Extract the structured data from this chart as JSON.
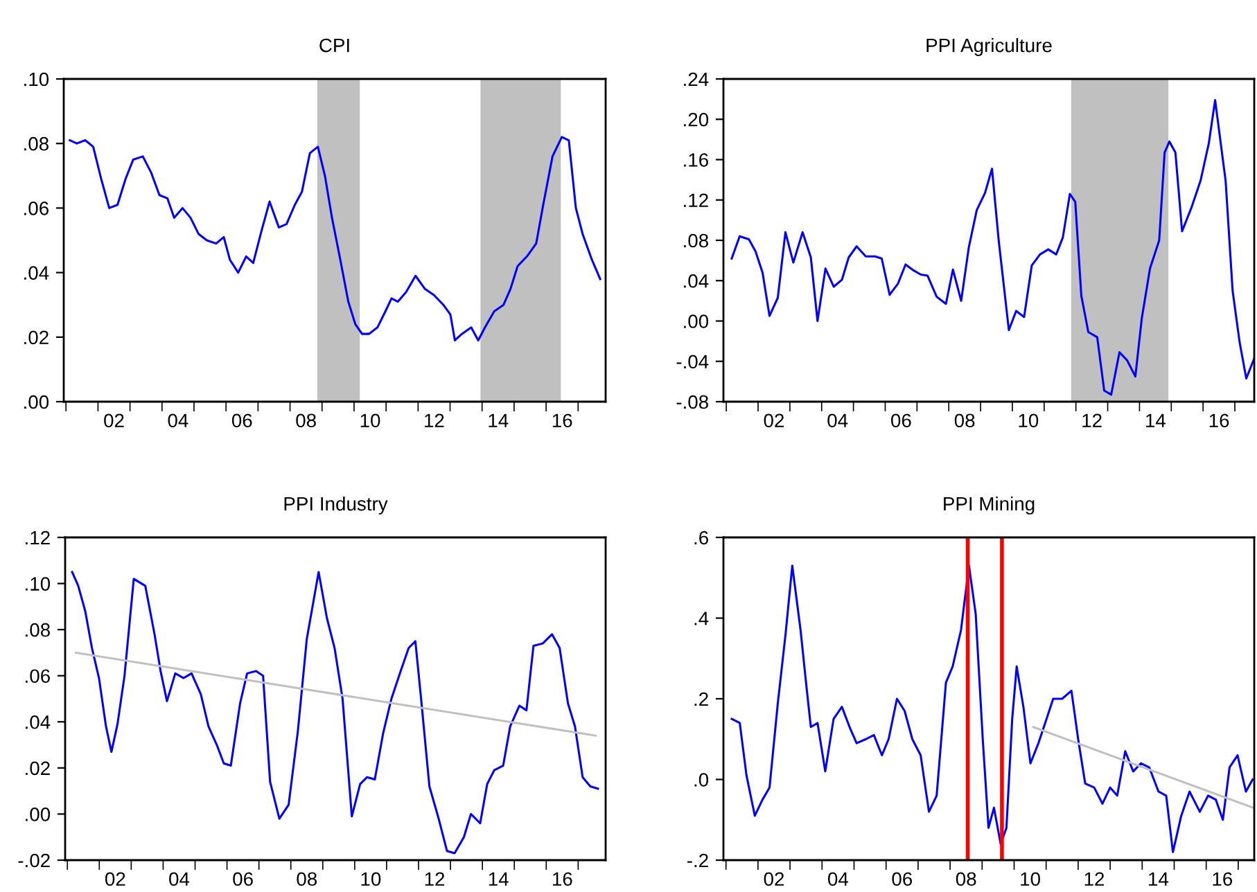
{
  "chart_data": [
    {
      "type": "line",
      "title": "CPI",
      "xlim": [
        0.43,
        17.36
      ],
      "ylim": [
        0,
        0.1
      ],
      "yticks": [
        {
          "value": 0,
          "label": ".00"
        },
        {
          "value": 0.02,
          "label": ".02"
        },
        {
          "value": 0.04,
          "label": ".04"
        },
        {
          "value": 0.06,
          "label": ".06"
        },
        {
          "value": 0.08,
          "label": ".08"
        },
        {
          "value": 0.1,
          "label": ".10"
        }
      ],
      "xticks": [
        {
          "value": 0.5,
          "label": null
        },
        {
          "value": 1.5,
          "label": null
        },
        {
          "value": 2.5,
          "label": null
        },
        {
          "value": 3.5,
          "label": null
        },
        {
          "value": 4.5,
          "label": null
        },
        {
          "value": 5.5,
          "label": null
        },
        {
          "value": 6.5,
          "label": null
        },
        {
          "value": 7.5,
          "label": null
        },
        {
          "value": 8.5,
          "label": null
        },
        {
          "value": 9.5,
          "label": null
        },
        {
          "value": 10.5,
          "label": null
        },
        {
          "value": 11.5,
          "label": null
        },
        {
          "value": 12.5,
          "label": null
        },
        {
          "value": 13.5,
          "label": null
        },
        {
          "value": 14.5,
          "label": null
        },
        {
          "value": 15.5,
          "label": null
        },
        {
          "value": 16.5,
          "label": null
        },
        {
          "value": 2,
          "label": "02"
        },
        {
          "value": 4,
          "label": "04"
        },
        {
          "value": 6,
          "label": "06"
        },
        {
          "value": 8,
          "label": "08"
        },
        {
          "value": 10,
          "label": "10"
        },
        {
          "value": 12,
          "label": "12"
        },
        {
          "value": 14,
          "label": "14"
        },
        {
          "value": 16,
          "label": "16"
        }
      ],
      "bands": [
        {
          "axis": "x",
          "from": 8.35,
          "to": 9.68,
          "color": "#c0c0c0"
        },
        {
          "axis": "x",
          "from": 13.45,
          "to": 15.96,
          "color": "#c0c0c0"
        }
      ],
      "series": [
        {
          "color": "#0000ff",
          "x": [
            0.62,
            0.84,
            1.1,
            1.35,
            1.6,
            1.85,
            2.11,
            2.36,
            2.6,
            2.9,
            3.16,
            3.42,
            3.67,
            3.88,
            4.14,
            4.39,
            4.64,
            4.9,
            5.19,
            5.43,
            5.62,
            5.88,
            6.13,
            6.35,
            6.61,
            6.86,
            7.15,
            7.39,
            7.65,
            7.87,
            8.12,
            8.37,
            8.59,
            8.81,
            9.07,
            9.32,
            9.54,
            9.75,
            9.97,
            10.23,
            10.48,
            10.67,
            10.87,
            11.13,
            11.42,
            11.71,
            12.0,
            12.29,
            12.51,
            12.65,
            12.87,
            13.16,
            13.38,
            13.59,
            13.88,
            14.17,
            14.39,
            14.61,
            14.9,
            15.19,
            15.41,
            15.7,
            15.99,
            16.21,
            16.43,
            16.64,
            16.93,
            17.19
          ],
          "values": [
            0.081,
            0.08,
            0.081,
            0.079,
            0.069,
            0.06,
            0.061,
            0.069,
            0.075,
            0.076,
            0.071,
            0.064,
            0.063,
            0.057,
            0.06,
            0.057,
            0.052,
            0.05,
            0.049,
            0.051,
            0.044,
            0.04,
            0.045,
            0.043,
            0.053,
            0.062,
            0.054,
            0.055,
            0.061,
            0.065,
            0.077,
            0.079,
            0.07,
            0.057,
            0.044,
            0.031,
            0.024,
            0.021,
            0.021,
            0.023,
            0.028,
            0.032,
            0.031,
            0.034,
            0.039,
            0.035,
            0.033,
            0.03,
            0.027,
            0.019,
            0.021,
            0.023,
            0.019,
            0.023,
            0.028,
            0.03,
            0.035,
            0.042,
            0.045,
            0.049,
            0.061,
            0.076,
            0.082,
            0.081,
            0.06,
            0.052,
            0.044,
            0.038
          ]
        }
      ]
    },
    {
      "type": "line",
      "title": "PPI Agriculture",
      "xlim": [
        0.41,
        17.11
      ],
      "ylim": [
        -0.08,
        0.24
      ],
      "yticks": [
        {
          "value": -0.08,
          "label": "-.08"
        },
        {
          "value": -0.04,
          "label": "-.04"
        },
        {
          "value": 0,
          "label": ".00"
        },
        {
          "value": 0.04,
          "label": ".04"
        },
        {
          "value": 0.08,
          "label": ".08"
        },
        {
          "value": 0.12,
          "label": ".12"
        },
        {
          "value": 0.16,
          "label": ".16"
        },
        {
          "value": 0.2,
          "label": ".20"
        },
        {
          "value": 0.24,
          "label": ".24"
        }
      ],
      "xticks": [
        {
          "value": 0.5,
          "label": null
        },
        {
          "value": 1.5,
          "label": null
        },
        {
          "value": 2.5,
          "label": null
        },
        {
          "value": 3.5,
          "label": null
        },
        {
          "value": 4.5,
          "label": null
        },
        {
          "value": 5.5,
          "label": null
        },
        {
          "value": 6.5,
          "label": null
        },
        {
          "value": 7.5,
          "label": null
        },
        {
          "value": 8.5,
          "label": null
        },
        {
          "value": 9.5,
          "label": null
        },
        {
          "value": 10.5,
          "label": null
        },
        {
          "value": 11.5,
          "label": null
        },
        {
          "value": 12.5,
          "label": null
        },
        {
          "value": 13.5,
          "label": null
        },
        {
          "value": 14.5,
          "label": null
        },
        {
          "value": 15.5,
          "label": null
        },
        {
          "value": 16.5,
          "label": null
        },
        {
          "value": 2,
          "label": "02"
        },
        {
          "value": 4,
          "label": "04"
        },
        {
          "value": 6,
          "label": "06"
        },
        {
          "value": 8,
          "label": "08"
        },
        {
          "value": 10,
          "label": "10"
        },
        {
          "value": 12,
          "label": "12"
        },
        {
          "value": 14,
          "label": "14"
        },
        {
          "value": 16,
          "label": "16"
        }
      ],
      "bands": [
        {
          "axis": "x",
          "from": 11.35,
          "to": 14.41,
          "color": "#c0c0c0"
        }
      ],
      "series": [
        {
          "color": "#0000ff",
          "x": [
            0.67,
            0.92,
            1.21,
            1.42,
            1.64,
            1.86,
            2.12,
            2.36,
            2.61,
            2.9,
            3.16,
            3.37,
            3.62,
            3.88,
            4.14,
            4.35,
            4.6,
            4.89,
            5.18,
            5.39,
            5.64,
            5.9,
            6.14,
            6.4,
            6.62,
            6.83,
            7.12,
            7.41,
            7.63,
            7.89,
            8.13,
            8.38,
            8.64,
            8.86,
            9.07,
            9.39,
            9.62,
            9.87,
            10.11,
            10.37,
            10.63,
            10.88,
            11.09,
            11.31,
            11.48,
            11.67,
            11.89,
            12.17,
            12.39,
            12.61,
            12.87,
            13.11,
            13.37,
            13.57,
            13.83,
            14.12,
            14.29,
            14.44,
            14.63,
            14.84,
            15.13,
            15.42,
            15.68,
            15.88,
            16.21,
            16.43,
            16.65,
            16.86,
            17.11
          ],
          "values": [
            0.062,
            0.084,
            0.081,
            0.069,
            0.048,
            0.005,
            0.023,
            0.088,
            0.058,
            0.088,
            0.063,
            0.0,
            0.052,
            0.034,
            0.041,
            0.063,
            0.074,
            0.064,
            0.064,
            0.062,
            0.026,
            0.037,
            0.056,
            0.05,
            0.046,
            0.045,
            0.024,
            0.017,
            0.051,
            0.02,
            0.073,
            0.11,
            0.127,
            0.151,
            0.08,
            -0.009,
            0.01,
            0.004,
            0.055,
            0.066,
            0.071,
            0.066,
            0.083,
            0.126,
            0.118,
            0.025,
            -0.011,
            -0.016,
            -0.069,
            -0.073,
            -0.031,
            -0.039,
            -0.055,
            0.002,
            0.052,
            0.08,
            0.167,
            0.178,
            0.167,
            0.089,
            0.112,
            0.139,
            0.176,
            0.219,
            0.139,
            0.03,
            -0.021,
            -0.057,
            -0.037
          ]
        }
      ]
    },
    {
      "type": "line",
      "title": "PPI Industry",
      "xlim": [
        0.43,
        17.36
      ],
      "ylim": [
        -0.02,
        0.12
      ],
      "yticks": [
        {
          "value": -0.02,
          "label": "-.02"
        },
        {
          "value": 0,
          "label": ".00"
        },
        {
          "value": 0.02,
          "label": ".02"
        },
        {
          "value": 0.04,
          "label": ".04"
        },
        {
          "value": 0.06,
          "label": ".06"
        },
        {
          "value": 0.08,
          "label": ".08"
        },
        {
          "value": 0.1,
          "label": ".10"
        },
        {
          "value": 0.12,
          "label": ".12"
        }
      ],
      "xticks": [
        {
          "value": 0.5,
          "label": null
        },
        {
          "value": 1.5,
          "label": null
        },
        {
          "value": 2.5,
          "label": null
        },
        {
          "value": 3.5,
          "label": null
        },
        {
          "value": 4.5,
          "label": null
        },
        {
          "value": 5.5,
          "label": null
        },
        {
          "value": 6.5,
          "label": null
        },
        {
          "value": 7.5,
          "label": null
        },
        {
          "value": 8.5,
          "label": null
        },
        {
          "value": 9.5,
          "label": null
        },
        {
          "value": 10.5,
          "label": null
        },
        {
          "value": 11.5,
          "label": null
        },
        {
          "value": 12.5,
          "label": null
        },
        {
          "value": 13.5,
          "label": null
        },
        {
          "value": 14.5,
          "label": null
        },
        {
          "value": 15.5,
          "label": null
        },
        {
          "value": 16.5,
          "label": null
        },
        {
          "value": 2,
          "label": "02"
        },
        {
          "value": 4,
          "label": "04"
        },
        {
          "value": 6,
          "label": "06"
        },
        {
          "value": 8,
          "label": "08"
        },
        {
          "value": 10,
          "label": "10"
        },
        {
          "value": 12,
          "label": "12"
        },
        {
          "value": 14,
          "label": "14"
        },
        {
          "value": 16,
          "label": "16"
        }
      ],
      "series": [
        {
          "color": "#0000ff",
          "x": [
            0.65,
            0.84,
            1.06,
            1.27,
            1.49,
            1.71,
            1.88,
            2.07,
            2.29,
            2.58,
            2.94,
            3.23,
            3.42,
            3.62,
            3.88,
            4.14,
            4.39,
            4.68,
            4.92,
            5.18,
            5.4,
            5.62,
            5.91,
            6.13,
            6.41,
            6.63,
            6.85,
            7.14,
            7.43,
            7.72,
            8.0,
            8.37,
            8.63,
            8.87,
            9.12,
            9.41,
            9.67,
            9.89,
            10.13,
            10.39,
            10.65,
            10.94,
            11.19,
            11.4,
            11.58,
            11.84,
            12.13,
            12.39,
            12.63,
            12.92,
            13.14,
            13.43,
            13.65,
            13.87,
            14.15,
            14.37,
            14.66,
            14.88,
            15.1,
            15.39,
            15.68,
            15.92,
            16.18,
            16.4,
            16.64,
            16.88,
            17.12
          ],
          "values": [
            0.105,
            0.099,
            0.088,
            0.072,
            0.059,
            0.038,
            0.027,
            0.039,
            0.06,
            0.102,
            0.099,
            0.078,
            0.062,
            0.049,
            0.061,
            0.059,
            0.061,
            0.052,
            0.038,
            0.03,
            0.022,
            0.021,
            0.048,
            0.061,
            0.062,
            0.06,
            0.014,
            -0.002,
            0.004,
            0.036,
            0.076,
            0.105,
            0.085,
            0.072,
            0.05,
            -0.001,
            0.013,
            0.016,
            0.015,
            0.035,
            0.05,
            0.062,
            0.072,
            0.075,
            0.05,
            0.012,
            -0.002,
            -0.016,
            -0.017,
            -0.01,
            0.0,
            -0.004,
            0.013,
            0.019,
            0.021,
            0.038,
            0.047,
            0.045,
            0.073,
            0.074,
            0.078,
            0.072,
            0.048,
            0.038,
            0.016,
            0.012,
            0.011
          ]
        },
        {
          "color": "#c0c0c0",
          "x": [
            0.77,
            17.05
          ],
          "values": [
            0.07,
            0.034
          ]
        }
      ]
    },
    {
      "type": "line",
      "title": "PPI Mining",
      "xlim": [
        0.42,
        17.0
      ],
      "ylim": [
        -0.2,
        0.6
      ],
      "yticks": [
        {
          "value": -0.2,
          "label": "-.2"
        },
        {
          "value": 0,
          "label": ".0"
        },
        {
          "value": 0.2,
          "label": ".2"
        },
        {
          "value": 0.4,
          "label": ".4"
        },
        {
          "value": 0.6,
          "label": ".6"
        }
      ],
      "xticks": [
        {
          "value": 0.5,
          "label": null
        },
        {
          "value": 1.5,
          "label": null
        },
        {
          "value": 2.5,
          "label": null
        },
        {
          "value": 3.5,
          "label": null
        },
        {
          "value": 4.5,
          "label": null
        },
        {
          "value": 5.5,
          "label": null
        },
        {
          "value": 6.5,
          "label": null
        },
        {
          "value": 7.5,
          "label": null
        },
        {
          "value": 8.5,
          "label": null
        },
        {
          "value": 9.5,
          "label": null
        },
        {
          "value": 10.5,
          "label": null
        },
        {
          "value": 11.5,
          "label": null
        },
        {
          "value": 12.5,
          "label": null
        },
        {
          "value": 13.5,
          "label": null
        },
        {
          "value": 14.5,
          "label": null
        },
        {
          "value": 15.5,
          "label": null
        },
        {
          "value": 16.5,
          "label": null
        },
        {
          "value": 2,
          "label": "02"
        },
        {
          "value": 4,
          "label": "04"
        },
        {
          "value": 6,
          "label": "06"
        },
        {
          "value": 8,
          "label": "08"
        },
        {
          "value": 10,
          "label": "10"
        },
        {
          "value": 12,
          "label": "12"
        },
        {
          "value": 14,
          "label": "14"
        },
        {
          "value": 16,
          "label": "16"
        }
      ],
      "ref_lines": [
        {
          "axis": "x",
          "value": 8.05,
          "color": "#ff0000"
        },
        {
          "axis": "x",
          "value": 9.12,
          "color": "#ff0000"
        }
      ],
      "series": [
        {
          "color": "#0000ff",
          "x": [
            0.68,
            0.93,
            1.14,
            1.4,
            1.64,
            1.86,
            2.12,
            2.36,
            2.57,
            2.83,
            3.0,
            3.15,
            3.36,
            3.6,
            3.86,
            4.12,
            4.36,
            4.58,
            4.87,
            5.12,
            5.37,
            5.58,
            5.84,
            6.08,
            6.32,
            6.58,
            6.84,
            7.08,
            7.37,
            7.58,
            7.84,
            8.09,
            8.3,
            8.52,
            8.7,
            8.87,
            9.08,
            9.26,
            9.44,
            9.58,
            9.79,
            10.01,
            10.26,
            10.47,
            10.72,
            11.0,
            11.29,
            11.5,
            11.72,
            12.0,
            12.26,
            12.5,
            12.72,
            12.97,
            13.22,
            13.46,
            13.72,
            14.01,
            14.25,
            14.46,
            14.72,
            14.98,
            15.3,
            15.56,
            15.8,
            16.02,
            16.23,
            16.48,
            16.74,
            16.95
          ],
          "values": [
            0.15,
            0.14,
            0.01,
            -0.09,
            -0.05,
            -0.02,
            0.19,
            0.36,
            0.53,
            0.37,
            0.24,
            0.13,
            0.14,
            0.02,
            0.15,
            0.18,
            0.13,
            0.09,
            0.1,
            0.11,
            0.06,
            0.1,
            0.2,
            0.17,
            0.1,
            0.06,
            -0.08,
            -0.04,
            0.24,
            0.28,
            0.37,
            0.53,
            0.41,
            0.1,
            -0.12,
            -0.07,
            -0.16,
            -0.12,
            0.15,
            0.28,
            0.18,
            0.04,
            0.09,
            0.14,
            0.2,
            0.2,
            0.22,
            0.1,
            -0.01,
            -0.02,
            -0.06,
            -0.02,
            -0.04,
            0.07,
            0.02,
            0.04,
            0.03,
            -0.03,
            -0.04,
            -0.18,
            -0.09,
            -0.03,
            -0.08,
            -0.04,
            -0.05,
            -0.1,
            0.03,
            0.06,
            -0.03,
            0.0
          ]
        },
        {
          "color": "#c0c0c0",
          "x": [
            10.1,
            16.97
          ],
          "values": [
            0.13,
            -0.07
          ]
        }
      ]
    }
  ]
}
